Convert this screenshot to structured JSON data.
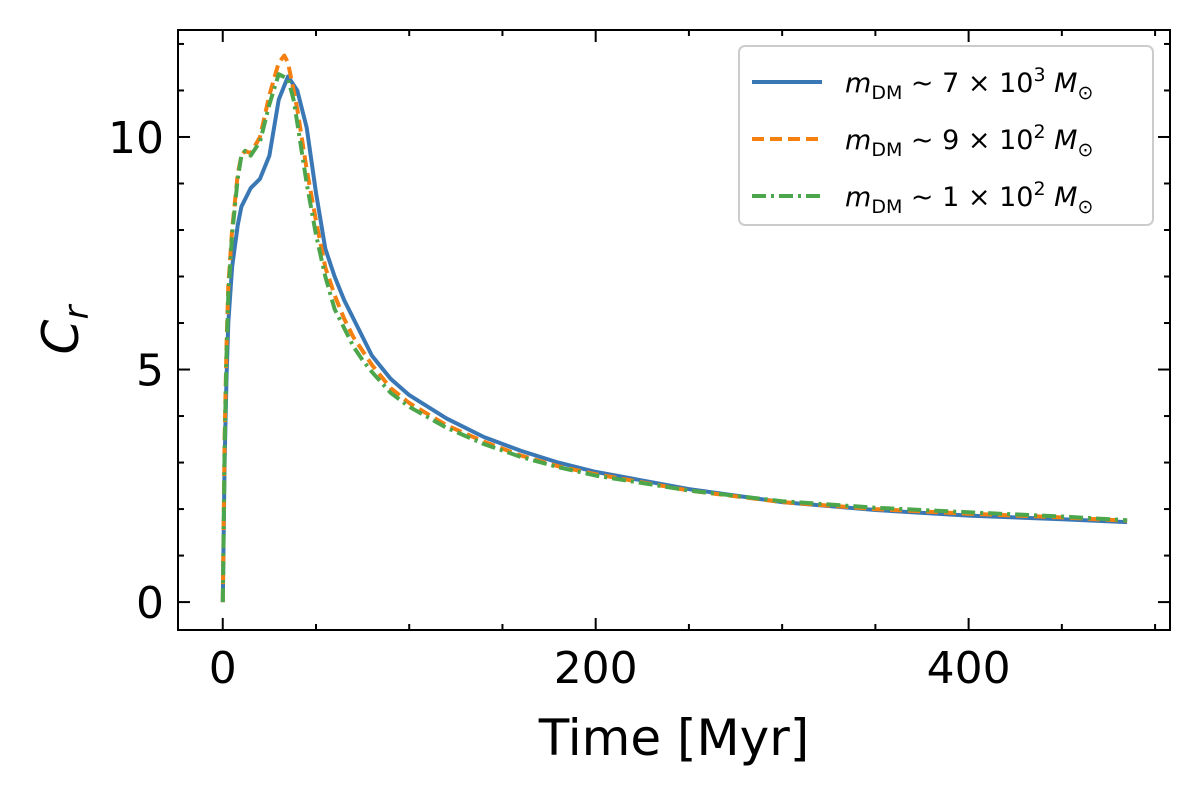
{
  "chart_data": {
    "type": "line",
    "xlabel": "Time [Myr]",
    "ylabel": "C_r",
    "ylabel_parts": {
      "base": "C",
      "sub": "r"
    },
    "xlim": [
      -24,
      508
    ],
    "ylim": [
      -0.6,
      12.3
    ],
    "xticks": [
      0,
      200,
      400
    ],
    "yticks": [
      0,
      5,
      10
    ],
    "xtick_labels": [
      "0",
      "200",
      "400"
    ],
    "ytick_labels": [
      "0",
      "5",
      "10"
    ],
    "x_minor_step": 50,
    "y_minor_step": 1,
    "ticks_direction": "in",
    "grid": false,
    "legend_position": "top-right",
    "series": [
      {
        "name": "m_DM ~ 7 × 10^3 M_⊙",
        "legend": {
          "mantissa": "7",
          "exponent": "3"
        },
        "color": "#3a78b5",
        "dash": "solid",
        "x": [
          0,
          1,
          2,
          3,
          5,
          8,
          10,
          15,
          20,
          25,
          30,
          35,
          40,
          45,
          50,
          55,
          60,
          65,
          70,
          75,
          80,
          90,
          100,
          120,
          140,
          160,
          180,
          200,
          250,
          300,
          350,
          400,
          450,
          485
        ],
        "y": [
          0,
          3.0,
          4.8,
          6.0,
          7.2,
          8.1,
          8.5,
          8.9,
          9.1,
          9.6,
          10.8,
          11.3,
          11.0,
          10.2,
          8.8,
          7.6,
          7.0,
          6.5,
          6.1,
          5.7,
          5.3,
          4.8,
          4.45,
          3.95,
          3.55,
          3.25,
          3.0,
          2.8,
          2.43,
          2.15,
          1.98,
          1.86,
          1.78,
          1.72
        ]
      },
      {
        "name": "m_DM ~ 9 × 10^2 M_⊙",
        "legend": {
          "mantissa": "9",
          "exponent": "2"
        },
        "color": "#f57f0f",
        "dash": "dashed",
        "x": [
          0,
          1,
          2,
          3,
          5,
          8,
          10,
          12,
          15,
          20,
          25,
          30,
          33,
          35,
          40,
          45,
          50,
          55,
          60,
          65,
          70,
          75,
          80,
          90,
          100,
          120,
          140,
          160,
          180,
          200,
          250,
          300,
          350,
          400,
          450,
          485
        ],
        "y": [
          0,
          3.5,
          5.5,
          6.8,
          8.0,
          9.2,
          9.6,
          9.7,
          9.65,
          10.0,
          10.9,
          11.6,
          11.75,
          11.6,
          10.6,
          9.3,
          8.2,
          7.2,
          6.6,
          6.1,
          5.7,
          5.4,
          5.1,
          4.6,
          4.28,
          3.8,
          3.45,
          3.15,
          2.92,
          2.75,
          2.4,
          2.15,
          2.0,
          1.9,
          1.82,
          1.75
        ]
      },
      {
        "name": "m_DM ~ 1 × 10^2 M_⊙",
        "legend": {
          "mantissa": "1",
          "exponent": "2"
        },
        "color": "#4ca64b",
        "dash": "dashdot",
        "x": [
          0,
          1,
          2,
          3,
          5,
          8,
          10,
          12,
          15,
          20,
          25,
          30,
          35,
          38,
          40,
          45,
          50,
          55,
          60,
          65,
          70,
          75,
          80,
          90,
          100,
          120,
          140,
          160,
          180,
          200,
          250,
          300,
          350,
          400,
          450,
          485
        ],
        "y": [
          0,
          3.3,
          5.3,
          6.6,
          7.9,
          9.1,
          9.6,
          9.7,
          9.6,
          9.9,
          10.7,
          11.35,
          11.25,
          10.8,
          10.3,
          9.0,
          7.9,
          7.0,
          6.3,
          5.9,
          5.5,
          5.2,
          4.95,
          4.5,
          4.2,
          3.75,
          3.4,
          3.12,
          2.9,
          2.72,
          2.4,
          2.17,
          2.03,
          1.93,
          1.84,
          1.76
        ]
      }
    ]
  }
}
